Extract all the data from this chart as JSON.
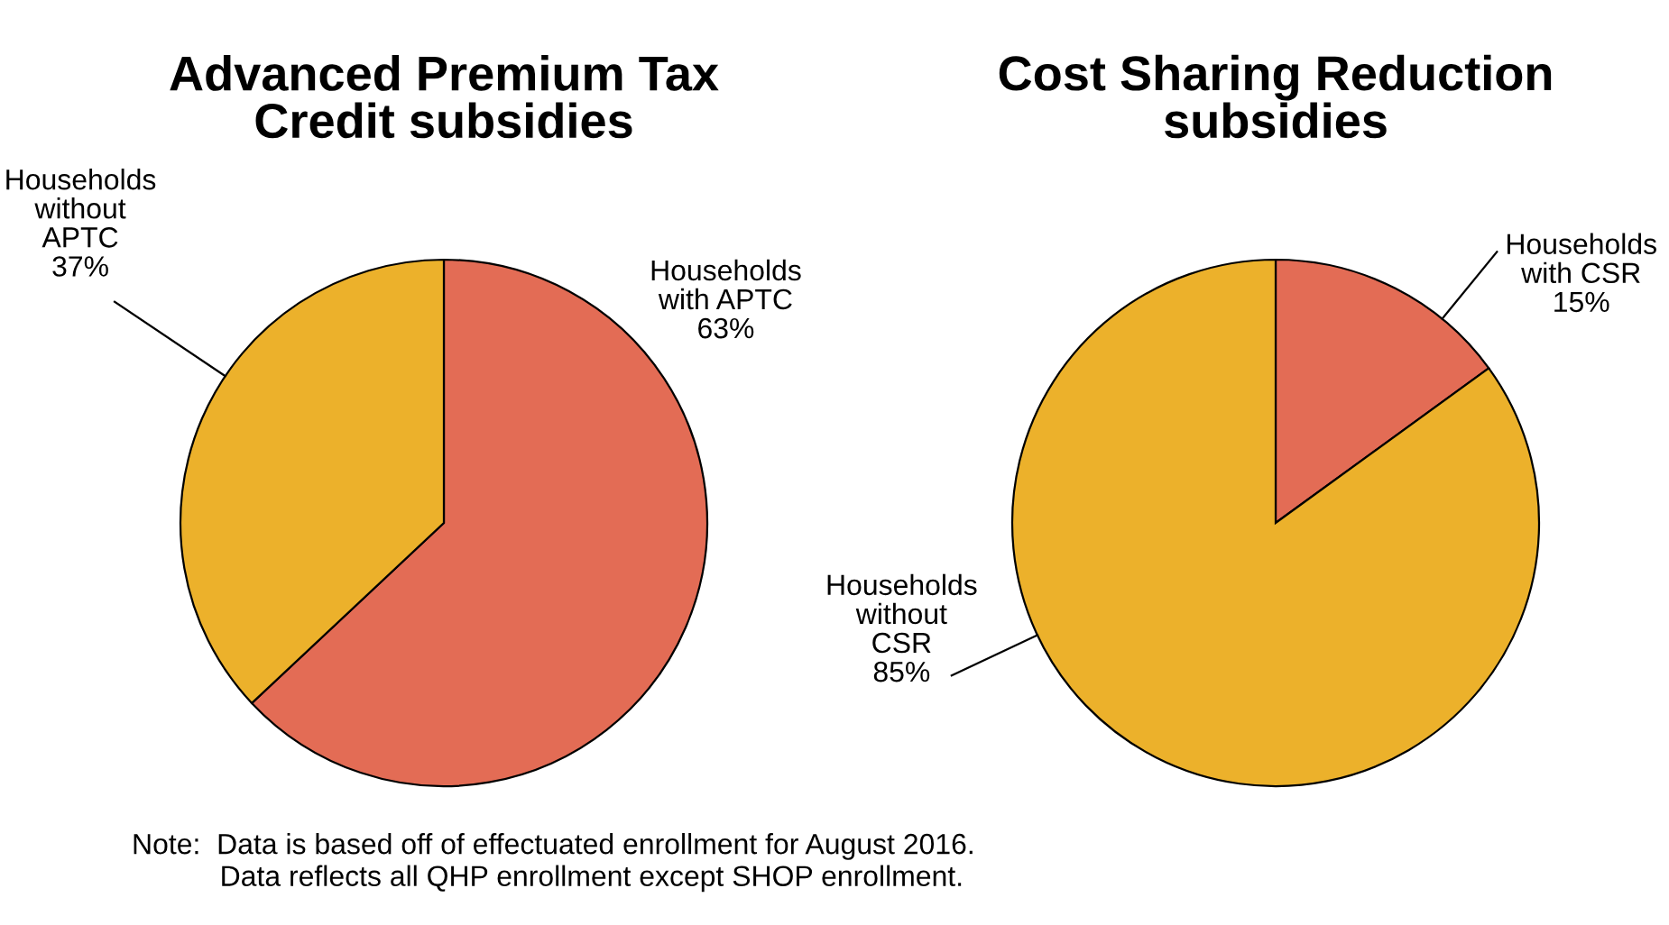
{
  "chart_data": [
    {
      "type": "pie",
      "title": "Advanced Premium Tax\nCredit subsidies",
      "categories": [
        "Households\nwith APTC",
        "Households\nwithout\nAPTC"
      ],
      "values": [
        63,
        37
      ],
      "value_labels": [
        "63%",
        "37%"
      ],
      "colors": [
        "#e36c55",
        "#ecb12b"
      ],
      "legend": false,
      "annotations": [
        "Note:  Data is based off of effectuated enrollment for August 2016.\n           Data reflects all QHP enrollment except SHOP enrollment."
      ]
    },
    {
      "type": "pie",
      "title": "Cost Sharing Reduction\nsubsidies",
      "categories": [
        "Households\nwith CSR",
        "Households\nwithout\nCSR"
      ],
      "values": [
        15,
        85
      ],
      "value_labels": [
        "15%",
        "85%"
      ],
      "colors": [
        "#e36c55",
        "#ecb12b"
      ],
      "legend": false
    }
  ]
}
